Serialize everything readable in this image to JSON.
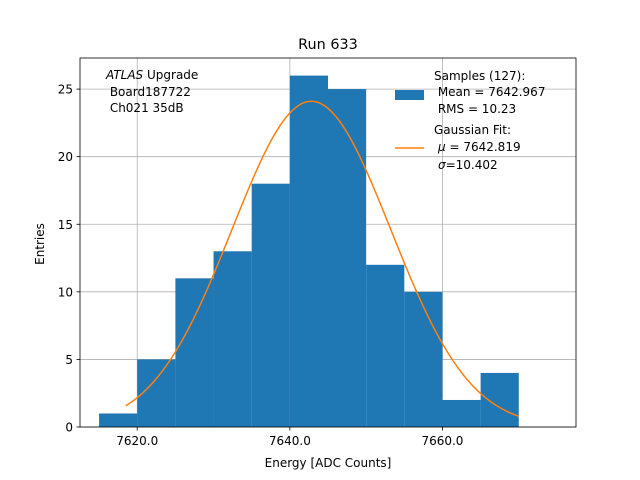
{
  "chart_data": {
    "type": "bar",
    "title": "Run 633",
    "xlabel": "Energy [ADC Counts]",
    "ylabel": "Entries",
    "xlim": [
      7612.5,
      7677.5
    ],
    "ylim": [
      0,
      27.3
    ],
    "grid": true,
    "x_ticks": [
      7620,
      7640,
      7660
    ],
    "x_tick_labels": [
      "7620.0",
      "7640.0",
      "7660.0"
    ],
    "y_ticks": [
      0,
      5,
      10,
      15,
      20,
      25
    ],
    "y_tick_labels": [
      "0",
      "5",
      "10",
      "15",
      "20",
      "25"
    ],
    "histogram": {
      "bin_edges": [
        7615,
        7620,
        7625,
        7630,
        7635,
        7640,
        7645,
        7650,
        7655,
        7660,
        7665,
        7670
      ],
      "counts": [
        1,
        5,
        11,
        13,
        18,
        26,
        25,
        12,
        10,
        2,
        4
      ],
      "color": "#1f77b4"
    },
    "gaussian_fit": {
      "mu": 7642.819,
      "sigma": 10.402,
      "amplitude": 24.1,
      "x_range": [
        7618.5,
        7670
      ],
      "color": "#ff7f0e"
    },
    "annotation": {
      "italic": "ATLAS",
      "rest": " Upgrade",
      "line2": " Board187722",
      "line3": " Ch021 35dB"
    },
    "legend": {
      "position": "top-right",
      "samples": {
        "line1": "Samples (127):",
        "line2": " Mean = 7642.967",
        "line3": " RMS = 10.23"
      },
      "fit": {
        "line1": "Gaussian Fit:",
        "mu_symbol": "μ",
        "mu_text": " = 7642.819",
        "sigma_symbol": "σ",
        "sigma_text": "=10.402"
      }
    }
  }
}
